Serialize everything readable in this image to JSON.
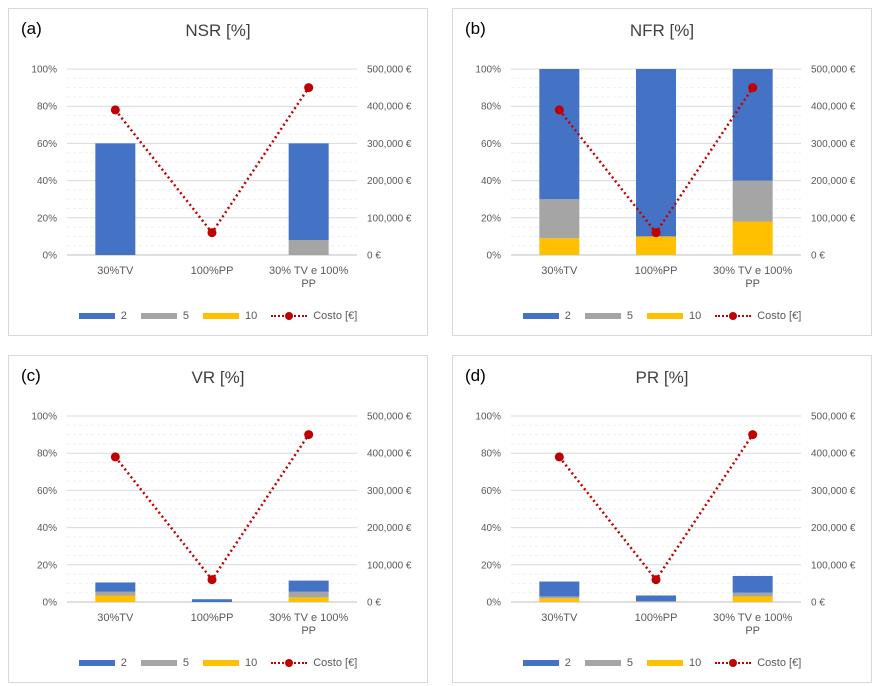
{
  "chart_data": [
    {
      "type": "bar",
      "panel_label": "(a)",
      "title": "NSR [%]",
      "categories": [
        [
          "30%TV"
        ],
        [
          "100%PP"
        ],
        [
          "30% TV e 100%",
          "PP"
        ]
      ],
      "series": [
        {
          "name": "2",
          "color": "#4472c4",
          "values": [
            60,
            0,
            52
          ]
        },
        {
          "name": "5",
          "color": "#a5a5a5",
          "values": [
            0,
            0,
            8
          ]
        },
        {
          "name": "10",
          "color": "#ffc000",
          "values": [
            0,
            0,
            0
          ]
        }
      ],
      "line_series": {
        "name": "Costo [€]",
        "color": "#c00000",
        "values": [
          390000,
          60000,
          450000
        ]
      },
      "y_ticks": [
        "0%",
        "20%",
        "40%",
        "60%",
        "80%",
        "100%"
      ],
      "y2_ticks": [
        "0 €",
        "100,000 €",
        "200,000 €",
        "300,000 €",
        "400,000 €",
        "500,000 €"
      ],
      "ylim": [
        0,
        100
      ],
      "y2lim": [
        0,
        500000
      ]
    },
    {
      "type": "bar",
      "panel_label": "(b)",
      "title": "NFR [%]",
      "categories": [
        [
          "30%TV"
        ],
        [
          "100%PP"
        ],
        [
          "30% TV e 100%",
          "PP"
        ]
      ],
      "series": [
        {
          "name": "2",
          "color": "#4472c4",
          "values": [
            70,
            90,
            60
          ]
        },
        {
          "name": "5",
          "color": "#a5a5a5",
          "values": [
            21,
            0,
            22
          ]
        },
        {
          "name": "10",
          "color": "#ffc000",
          "values": [
            9,
            10,
            18
          ]
        }
      ],
      "line_series": {
        "name": "Costo [€]",
        "color": "#c00000",
        "values": [
          390000,
          60000,
          450000
        ]
      },
      "y_ticks": [
        "0%",
        "20%",
        "40%",
        "60%",
        "80%",
        "100%"
      ],
      "y2_ticks": [
        "0 €",
        "100,000 €",
        "200,000 €",
        "300,000 €",
        "400,000 €",
        "500,000 €"
      ],
      "ylim": [
        0,
        100
      ],
      "y2lim": [
        0,
        500000
      ]
    },
    {
      "type": "bar",
      "panel_label": "(c)",
      "title": "VR [%]",
      "categories": [
        [
          "30%TV"
        ],
        [
          "100%PP"
        ],
        [
          "30% TV e 100%",
          "PP"
        ]
      ],
      "series": [
        {
          "name": "2",
          "color": "#4472c4",
          "values": [
            5,
            1.5,
            6
          ]
        },
        {
          "name": "5",
          "color": "#a5a5a5",
          "values": [
            2,
            0,
            3
          ]
        },
        {
          "name": "10",
          "color": "#ffc000",
          "values": [
            3.5,
            0,
            2.5
          ]
        }
      ],
      "line_series": {
        "name": "Costo [€]",
        "color": "#c00000",
        "values": [
          390000,
          60000,
          450000
        ]
      },
      "y_ticks": [
        "0%",
        "20%",
        "40%",
        "60%",
        "80%",
        "100%"
      ],
      "y2_ticks": [
        "0 €",
        "100,000 €",
        "200,000 €",
        "300,000 €",
        "400,000 €",
        "500,000 €"
      ],
      "ylim": [
        0,
        100
      ],
      "y2lim": [
        0,
        500000
      ]
    },
    {
      "type": "bar",
      "panel_label": "(d)",
      "title": "PR [%]",
      "categories": [
        [
          "30%TV"
        ],
        [
          "100%PP"
        ],
        [
          "30% TV e 100%",
          "PP"
        ]
      ],
      "series": [
        {
          "name": "2",
          "color": "#4472c4",
          "values": [
            8,
            3,
            9
          ]
        },
        {
          "name": "5",
          "color": "#a5a5a5",
          "values": [
            1,
            0.5,
            2
          ]
        },
        {
          "name": "10",
          "color": "#ffc000",
          "values": [
            2,
            0,
            3
          ]
        }
      ],
      "line_series": {
        "name": "Costo [€]",
        "color": "#c00000",
        "values": [
          390000,
          60000,
          450000
        ]
      },
      "y_ticks": [
        "0%",
        "20%",
        "40%",
        "60%",
        "80%",
        "100%"
      ],
      "y2_ticks": [
        "0 €",
        "100,000 €",
        "200,000 €",
        "300,000 €",
        "400,000 €",
        "500,000 €"
      ],
      "ylim": [
        0,
        100
      ],
      "y2lim": [
        0,
        500000
      ]
    }
  ]
}
